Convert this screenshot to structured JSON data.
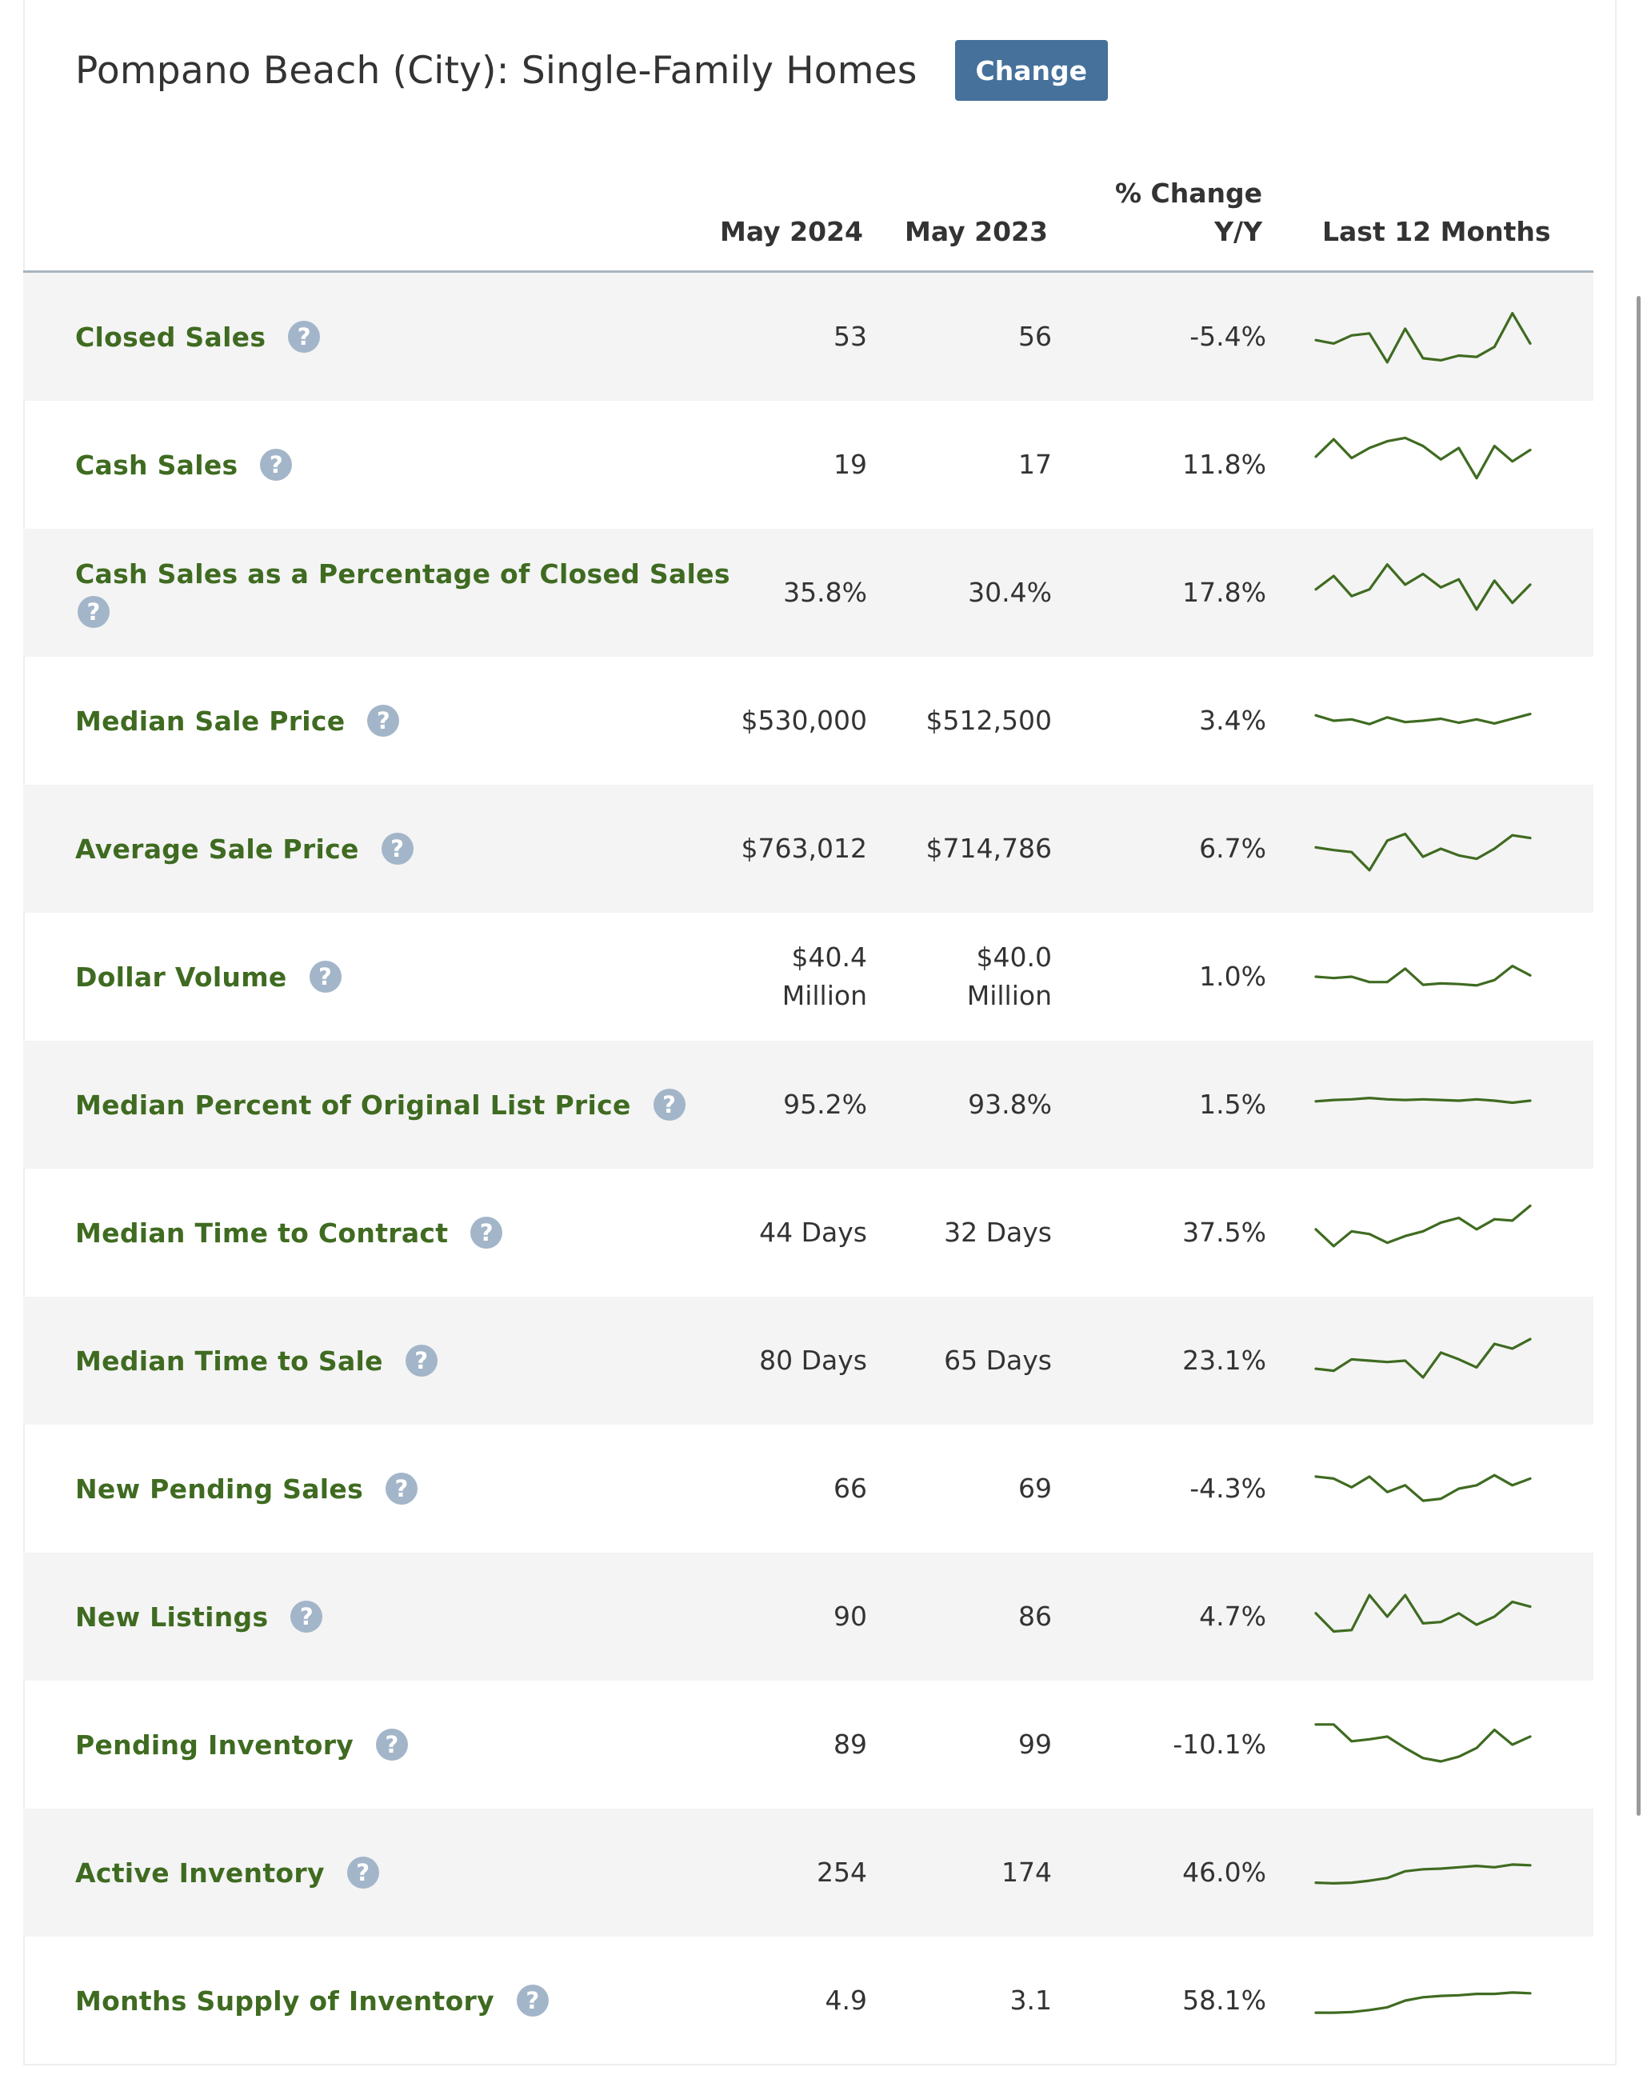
{
  "title": "Pompano Beach (City): Single-Family Homes",
  "change_label": "Change",
  "columns": {
    "current": "May 2024",
    "prior": "May 2023",
    "pct_line1": "% Change",
    "pct_line2": "Y/Y",
    "trend": "Last 12 Months"
  },
  "help_glyph": "?",
  "accent_color": "#3f6b21",
  "button_color": "#45719b",
  "rows": [
    {
      "label": "Closed Sales",
      "current": "53",
      "prior": "56",
      "pct": "-5.4%",
      "trend": [
        0.45,
        0.4,
        0.52,
        0.55,
        0.12,
        0.62,
        0.18,
        0.15,
        0.22,
        0.2,
        0.35,
        0.85,
        0.4
      ]
    },
    {
      "label": "Cash Sales",
      "current": "19",
      "prior": "17",
      "pct": "11.8%",
      "trend": [
        0.62,
        0.88,
        0.6,
        0.75,
        0.85,
        0.9,
        0.78,
        0.58,
        0.75,
        0.3,
        0.78,
        0.55,
        0.72
      ]
    },
    {
      "label": "Cash Sales as a Percentage of Closed Sales",
      "current": "35.8%",
      "prior": "30.4%",
      "pct": "17.8%",
      "trend": [
        0.55,
        0.75,
        0.45,
        0.55,
        0.92,
        0.62,
        0.78,
        0.58,
        0.7,
        0.25,
        0.68,
        0.35,
        0.62
      ]
    },
    {
      "label": "Median Sale Price",
      "current": "$530,000",
      "prior": "$512,500",
      "pct": "3.4%",
      "trend": [
        0.58,
        0.5,
        0.52,
        0.45,
        0.55,
        0.48,
        0.5,
        0.53,
        0.47,
        0.52,
        0.46,
        0.53,
        0.6
      ]
    },
    {
      "label": "Average Sale Price",
      "current": "$763,012",
      "prior": "$714,786",
      "pct": "6.7%",
      "trend": [
        0.52,
        0.48,
        0.45,
        0.18,
        0.62,
        0.72,
        0.38,
        0.5,
        0.4,
        0.35,
        0.5,
        0.7,
        0.66
      ]
    },
    {
      "label": "Dollar Volume",
      "current_l1": "$40.4",
      "current_l2": "Million",
      "prior_l1": "$40.0",
      "prior_l2": "Million",
      "pct": "1.0%",
      "trend": [
        0.5,
        0.48,
        0.5,
        0.42,
        0.42,
        0.62,
        0.38,
        0.4,
        0.39,
        0.37,
        0.45,
        0.66,
        0.52
      ]
    },
    {
      "label": "Median Percent of Original List Price",
      "current": "95.2%",
      "prior": "93.8%",
      "pct": "1.5%",
      "trend": [
        0.55,
        0.57,
        0.58,
        0.6,
        0.58,
        0.57,
        0.58,
        0.57,
        0.56,
        0.58,
        0.56,
        0.53,
        0.56
      ]
    },
    {
      "label": "Median Time to Contract",
      "current": "44 Days",
      "prior": "32 Days",
      "pct": "37.5%",
      "trend": [
        0.55,
        0.3,
        0.52,
        0.48,
        0.35,
        0.45,
        0.52,
        0.65,
        0.72,
        0.55,
        0.7,
        0.68,
        0.9
      ]
    },
    {
      "label": "Median Time to Sale",
      "current": "80 Days",
      "prior": "65 Days",
      "pct": "23.1%",
      "trend": [
        0.38,
        0.35,
        0.52,
        0.5,
        0.48,
        0.5,
        0.25,
        0.62,
        0.52,
        0.4,
        0.75,
        0.68,
        0.82
      ]
    },
    {
      "label": "New Pending Sales",
      "current": "66",
      "prior": "69",
      "pct": "-4.3%",
      "trend": [
        0.68,
        0.65,
        0.52,
        0.68,
        0.45,
        0.55,
        0.32,
        0.35,
        0.5,
        0.55,
        0.7,
        0.55,
        0.65
      ]
    },
    {
      "label": "New Listings",
      "current": "90",
      "prior": "86",
      "pct": "4.7%",
      "trend": [
        0.55,
        0.28,
        0.3,
        0.82,
        0.5,
        0.82,
        0.4,
        0.42,
        0.55,
        0.38,
        0.5,
        0.72,
        0.65
      ]
    },
    {
      "label": "Pending Inventory",
      "current": "89",
      "prior": "99",
      "pct": "-10.1%",
      "trend": [
        0.8,
        0.8,
        0.55,
        0.58,
        0.62,
        0.45,
        0.3,
        0.25,
        0.32,
        0.45,
        0.72,
        0.5,
        0.62
      ]
    },
    {
      "label": "Active Inventory",
      "current": "254",
      "prior": "174",
      "pct": "46.0%",
      "trend": [
        0.35,
        0.34,
        0.35,
        0.38,
        0.42,
        0.52,
        0.55,
        0.56,
        0.58,
        0.6,
        0.58,
        0.62,
        0.61
      ]
    },
    {
      "label": "Months Supply of Inventory",
      "current": "4.9",
      "prior": "3.1",
      "pct": "58.1%",
      "trend": [
        0.32,
        0.32,
        0.33,
        0.36,
        0.4,
        0.5,
        0.55,
        0.57,
        0.58,
        0.6,
        0.6,
        0.62,
        0.61
      ]
    }
  ]
}
